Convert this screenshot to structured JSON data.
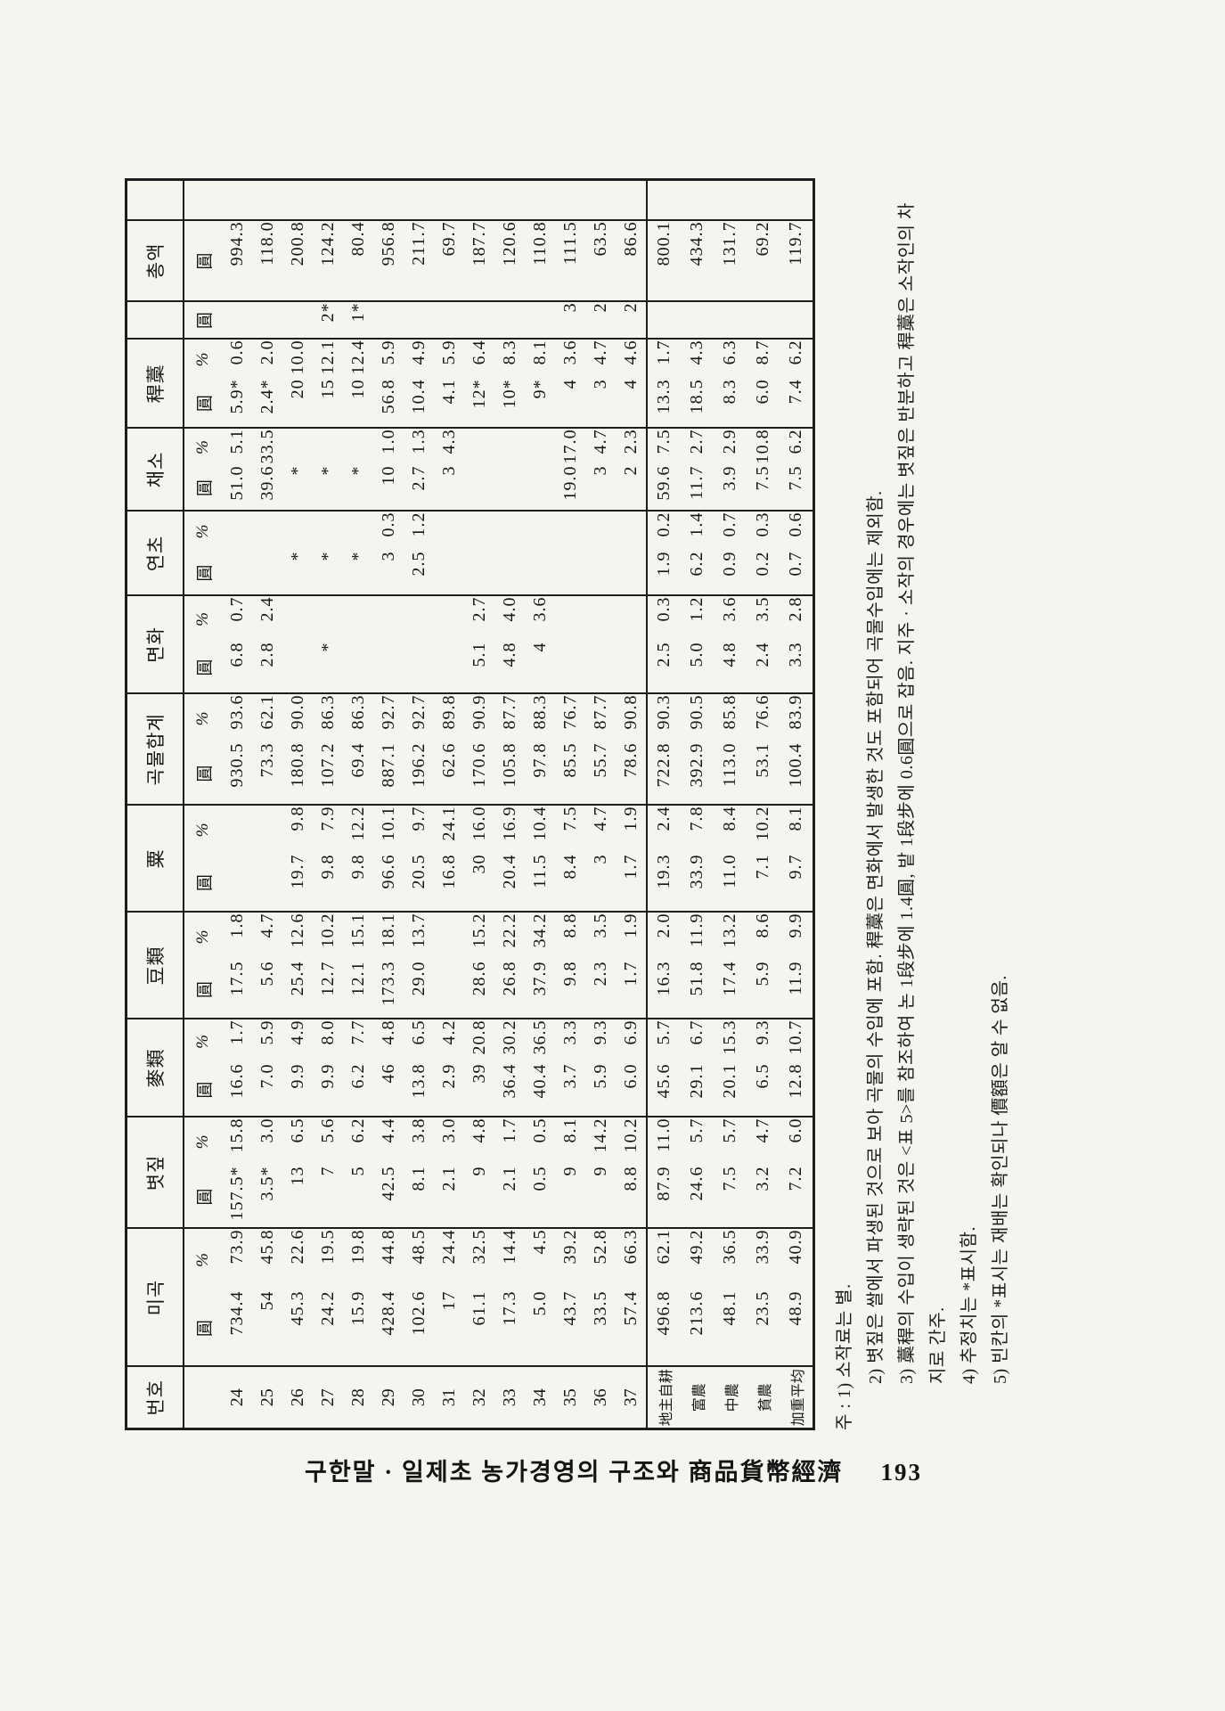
{
  "colors": {
    "page_background": "#f6f4ee",
    "ink": "#161616",
    "rule_line": "#1d1d1d"
  },
  "footer": {
    "title": "구한말 · 일제초 농가경영의 구조와 商品貨幣經濟",
    "page_number": "193"
  },
  "table": {
    "unit_won": "圓",
    "unit_pct": "%",
    "groups": [
      {
        "label": "번호",
        "subs": 0
      },
      {
        "label": "미곡",
        "subs": 2
      },
      {
        "label": "볏짚",
        "subs": 2
      },
      {
        "label": "麥類",
        "subs": 2
      },
      {
        "label": "豆類",
        "subs": 2
      },
      {
        "label": "粟",
        "subs": 2
      },
      {
        "label": "곡물합계",
        "subs": 2
      },
      {
        "label": "면화",
        "subs": 2
      },
      {
        "label": "연초",
        "subs": 2
      },
      {
        "label": "채소",
        "subs": 2
      },
      {
        "label": "稈藁",
        "subs": 2
      },
      {
        "label": "",
        "subs": 1
      },
      {
        "label": "총액",
        "subs": 1
      },
      {
        "label": "",
        "subs": 0
      }
    ],
    "rows": [
      {
        "label": "24",
        "cells": [
          "734.4",
          "73.9",
          "157.5*",
          "15.8",
          "16.6",
          "1.7",
          "17.5",
          "1.8",
          "",
          "",
          "930.5",
          "93.6",
          "6.8",
          "0.7",
          "",
          "",
          "51.0",
          "5.1",
          "5.9*",
          "0.6",
          "",
          "994.3"
        ]
      },
      {
        "label": "25",
        "cells": [
          "54",
          "45.8",
          "3.5*",
          "3.0",
          "7.0",
          "5.9",
          "5.6",
          "4.7",
          "",
          "",
          "73.3",
          "62.1",
          "2.8",
          "2.4",
          "",
          "",
          "39.6",
          "33.5",
          "2.4*",
          "2.0",
          "",
          "118.0"
        ]
      },
      {
        "label": "26",
        "cells": [
          "45.3",
          "22.6",
          "13",
          "6.5",
          "9.9",
          "4.9",
          "25.4",
          "12.6",
          "19.7",
          "9.8",
          "180.8",
          "90.0",
          "",
          "",
          "*",
          "",
          "*",
          "",
          "20",
          "10.0",
          "",
          "200.8"
        ]
      },
      {
        "label": "27",
        "cells": [
          "24.2",
          "19.5",
          "7",
          "5.6",
          "9.9",
          "8.0",
          "12.7",
          "10.2",
          "9.8",
          "7.9",
          "107.2",
          "86.3",
          "*",
          "",
          "*",
          "",
          "*",
          "",
          "15",
          "12.1",
          "2*",
          "124.2"
        ]
      },
      {
        "label": "28",
        "cells": [
          "15.9",
          "19.8",
          "5",
          "6.2",
          "6.2",
          "7.7",
          "12.1",
          "15.1",
          "9.8",
          "12.2",
          "69.4",
          "86.3",
          "",
          "",
          "*",
          "",
          "*",
          "",
          "10",
          "12.4",
          "1*",
          "80.4"
        ]
      },
      {
        "label": "29",
        "cells": [
          "428.4",
          "44.8",
          "42.5",
          "4.4",
          "46",
          "4.8",
          "173.3",
          "18.1",
          "96.6",
          "10.1",
          "887.1",
          "92.7",
          "",
          "",
          "3",
          "0.3",
          "10",
          "1.0",
          "56.8",
          "5.9",
          "",
          "956.8"
        ]
      },
      {
        "label": "30",
        "cells": [
          "102.6",
          "48.5",
          "8.1",
          "3.8",
          "13.8",
          "6.5",
          "29.0",
          "13.7",
          "20.5",
          "9.7",
          "196.2",
          "92.7",
          "",
          "",
          "2.5",
          "1.2",
          "2.7",
          "1.3",
          "10.4",
          "4.9",
          "",
          "211.7"
        ]
      },
      {
        "label": "31",
        "cells": [
          "17",
          "24.4",
          "2.1",
          "3.0",
          "2.9",
          "4.2",
          "",
          "",
          "16.8",
          "24.1",
          "62.6",
          "89.8",
          "",
          "",
          "",
          "",
          "3",
          "4.3",
          "4.1",
          "5.9",
          "",
          "69.7"
        ]
      },
      {
        "label": "32",
        "cells": [
          "61.1",
          "32.5",
          "9",
          "4.8",
          "39",
          "20.8",
          "28.6",
          "15.2",
          "30",
          "16.0",
          "170.6",
          "90.9",
          "5.1",
          "2.7",
          "",
          "",
          "",
          "",
          "12*",
          "6.4",
          "",
          "187.7"
        ]
      },
      {
        "label": "33",
        "cells": [
          "17.3",
          "14.4",
          "2.1",
          "1.7",
          "36.4",
          "30.2",
          "26.8",
          "22.2",
          "20.4",
          "16.9",
          "105.8",
          "87.7",
          "4.8",
          "4.0",
          "",
          "",
          "",
          "",
          "10*",
          "8.3",
          "",
          "120.6"
        ]
      },
      {
        "label": "34",
        "cells": [
          "5.0",
          "4.5",
          "0.5",
          "0.5",
          "40.4",
          "36.5",
          "37.9",
          "34.2",
          "11.5",
          "10.4",
          "97.8",
          "88.3",
          "4",
          "3.6",
          "",
          "",
          "",
          "",
          "9*",
          "8.1",
          "",
          "110.8"
        ]
      },
      {
        "label": "35",
        "cells": [
          "43.7",
          "39.2",
          "9",
          "8.1",
          "3.7",
          "3.3",
          "9.8",
          "8.8",
          "8.4",
          "7.5",
          "85.5",
          "76.7",
          "",
          "",
          "",
          "",
          "19.0",
          "17.0",
          "4",
          "3.6",
          "3",
          "111.5"
        ]
      },
      {
        "label": "36",
        "cells": [
          "33.5",
          "52.8",
          "9",
          "14.2",
          "5.9",
          "9.3",
          "2.3",
          "3.5",
          "3",
          "4.7",
          "55.7",
          "87.7",
          "",
          "",
          "",
          "",
          "3",
          "4.7",
          "3",
          "4.7",
          "2",
          "63.5"
        ]
      },
      {
        "label": "37",
        "cells": [
          "57.4",
          "66.3",
          "8.8",
          "10.2",
          "6.0",
          "6.9",
          "1.7",
          "1.9",
          "1.7",
          "1.9",
          "78.6",
          "90.8",
          "",
          "",
          "",
          "",
          "2",
          "2.3",
          "4",
          "4.6",
          "2",
          "86.6"
        ]
      }
    ],
    "summary_rows": [
      {
        "label": "地主自耕",
        "cells": [
          "496.8",
          "62.1",
          "87.9",
          "11.0",
          "45.6",
          "5.7",
          "16.3",
          "2.0",
          "19.3",
          "2.4",
          "722.8",
          "90.3",
          "2.5",
          "0.3",
          "1.9",
          "0.2",
          "59.6",
          "7.5",
          "13.3",
          "1.7",
          "",
          "800.1"
        ]
      },
      {
        "label": "富農",
        "cells": [
          "213.6",
          "49.2",
          "24.6",
          "5.7",
          "29.1",
          "6.7",
          "51.8",
          "11.9",
          "33.9",
          "7.8",
          "392.9",
          "90.5",
          "5.0",
          "1.2",
          "6.2",
          "1.4",
          "11.7",
          "2.7",
          "18.5",
          "4.3",
          "",
          "434.3"
        ]
      },
      {
        "label": "中農",
        "cells": [
          "48.1",
          "36.5",
          "7.5",
          "5.7",
          "20.1",
          "15.3",
          "17.4",
          "13.2",
          "11.0",
          "8.4",
          "113.0",
          "85.8",
          "4.8",
          "3.6",
          "0.9",
          "0.7",
          "3.9",
          "2.9",
          "8.3",
          "6.3",
          "",
          "131.7"
        ]
      },
      {
        "label": "貧農",
        "cells": [
          "23.5",
          "33.9",
          "3.2",
          "4.7",
          "6.5",
          "9.3",
          "5.9",
          "8.6",
          "7.1",
          "10.2",
          "53.1",
          "76.6",
          "2.4",
          "3.5",
          "0.2",
          "0.3",
          "7.5",
          "10.8",
          "6.0",
          "8.7",
          "",
          "69.2"
        ]
      },
      {
        "label": "加重平均",
        "cells": [
          "48.9",
          "40.9",
          "7.2",
          "6.0",
          "12.8",
          "10.7",
          "11.9",
          "9.9",
          "9.7",
          "8.1",
          "100.4",
          "83.9",
          "3.3",
          "2.8",
          "0.7",
          "0.6",
          "7.5",
          "6.2",
          "7.4",
          "6.2",
          "",
          "119.7"
        ]
      }
    ]
  },
  "footnotes": [
    "주 : 1) 소작료는 별.",
    "2) 볏짚은 쌀에서 파생된 것으로 보아 곡물의 수입에 포함. 稈藁은 면화에서 발생한 것도 포함되어 곡물수입에는 제외함.",
    "3) 藁稈의 수입이 생략된 것은 <표 5>를 참조하여 논 1段步에 1.4圓, 밭 1段步에 0.6圓으로 잡음. 지주 · 소작의 경우에는 볏짚은 반분하고 稈藁은 소작인의 차지로 간주.",
    "4) 추정치는 *표시함.",
    "5) 빈칸의 *표시는 재배는 확인되나 價額은 알 수 없음."
  ]
}
